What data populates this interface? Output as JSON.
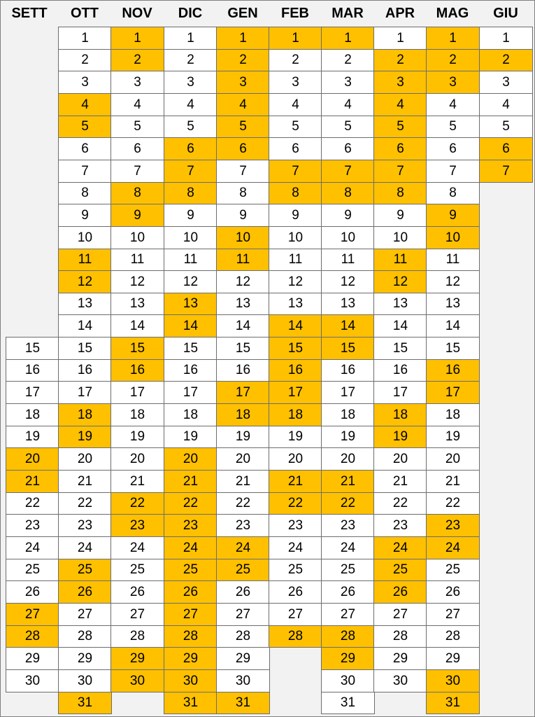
{
  "calendar": {
    "months": [
      {
        "name": "SETT",
        "days": [
          15,
          16,
          17,
          18,
          19,
          20,
          21,
          22,
          23,
          24,
          25,
          26,
          27,
          28,
          29,
          30
        ],
        "highlighted": [
          20,
          21,
          27,
          28
        ]
      },
      {
        "name": "OTT",
        "days": [
          1,
          2,
          3,
          4,
          5,
          6,
          7,
          8,
          9,
          10,
          11,
          12,
          13,
          14,
          15,
          16,
          17,
          18,
          19,
          20,
          21,
          22,
          23,
          24,
          25,
          26,
          27,
          28,
          29,
          30,
          31
        ],
        "highlighted": [
          4,
          5,
          11,
          12,
          18,
          19,
          25,
          26,
          31
        ]
      },
      {
        "name": "NOV",
        "days": [
          1,
          2,
          3,
          4,
          5,
          6,
          7,
          8,
          9,
          10,
          11,
          12,
          13,
          14,
          15,
          16,
          17,
          18,
          19,
          20,
          21,
          22,
          23,
          24,
          25,
          26,
          27,
          28,
          29,
          30
        ],
        "highlighted": [
          1,
          2,
          8,
          9,
          15,
          16,
          22,
          23,
          29,
          30
        ]
      },
      {
        "name": "DIC",
        "days": [
          1,
          2,
          3,
          4,
          5,
          6,
          7,
          8,
          9,
          10,
          11,
          12,
          13,
          14,
          15,
          16,
          17,
          18,
          19,
          20,
          21,
          22,
          23,
          24,
          25,
          26,
          27,
          28,
          29,
          30,
          31
        ],
        "highlighted": [
          6,
          7,
          8,
          13,
          14,
          20,
          21,
          22,
          23,
          24,
          25,
          26,
          27,
          28,
          29,
          30,
          31
        ]
      },
      {
        "name": "GEN",
        "days": [
          1,
          2,
          3,
          4,
          5,
          6,
          7,
          8,
          9,
          10,
          11,
          12,
          13,
          14,
          15,
          16,
          17,
          18,
          19,
          20,
          21,
          22,
          23,
          24,
          25,
          26,
          27,
          28,
          29,
          30,
          31
        ],
        "highlighted": [
          1,
          2,
          3,
          4,
          5,
          6,
          10,
          11,
          17,
          18,
          24,
          25,
          31
        ]
      },
      {
        "name": "FEB",
        "days": [
          1,
          2,
          3,
          4,
          5,
          6,
          7,
          8,
          9,
          10,
          11,
          12,
          13,
          14,
          15,
          16,
          17,
          18,
          19,
          20,
          21,
          22,
          23,
          24,
          25,
          26,
          27,
          28
        ],
        "highlighted": [
          1,
          7,
          8,
          14,
          15,
          16,
          17,
          18,
          21,
          22,
          28
        ]
      },
      {
        "name": "MAR",
        "days": [
          1,
          2,
          3,
          4,
          5,
          6,
          7,
          8,
          9,
          10,
          11,
          12,
          13,
          14,
          15,
          16,
          17,
          18,
          19,
          20,
          21,
          22,
          23,
          24,
          25,
          26,
          27,
          28,
          29,
          30,
          31
        ],
        "highlighted": [
          1,
          7,
          8,
          14,
          15,
          21,
          22,
          28,
          29
        ]
      },
      {
        "name": "APR",
        "days": [
          1,
          2,
          3,
          4,
          5,
          6,
          7,
          8,
          9,
          10,
          11,
          12,
          13,
          14,
          15,
          16,
          17,
          18,
          19,
          20,
          21,
          22,
          23,
          24,
          25,
          26,
          27,
          28,
          29,
          30
        ],
        "highlighted": [
          2,
          3,
          4,
          5,
          6,
          7,
          8,
          11,
          12,
          18,
          19,
          24,
          25,
          26
        ]
      },
      {
        "name": "MAG",
        "days": [
          1,
          2,
          3,
          4,
          5,
          6,
          7,
          8,
          9,
          10,
          11,
          12,
          13,
          14,
          15,
          16,
          17,
          18,
          19,
          20,
          21,
          22,
          23,
          24,
          25,
          26,
          27,
          28,
          29,
          30,
          31
        ],
        "highlighted": [
          1,
          2,
          3,
          9,
          10,
          16,
          17,
          23,
          24,
          30,
          31
        ]
      },
      {
        "name": "GIU",
        "days": [
          1,
          2,
          3,
          4,
          5,
          6,
          7
        ],
        "highlighted": [
          2,
          6,
          7
        ]
      }
    ],
    "colors": {
      "highlight": "#ffc000",
      "normal": "#ffffff",
      "background": "#f2f2f2"
    }
  }
}
